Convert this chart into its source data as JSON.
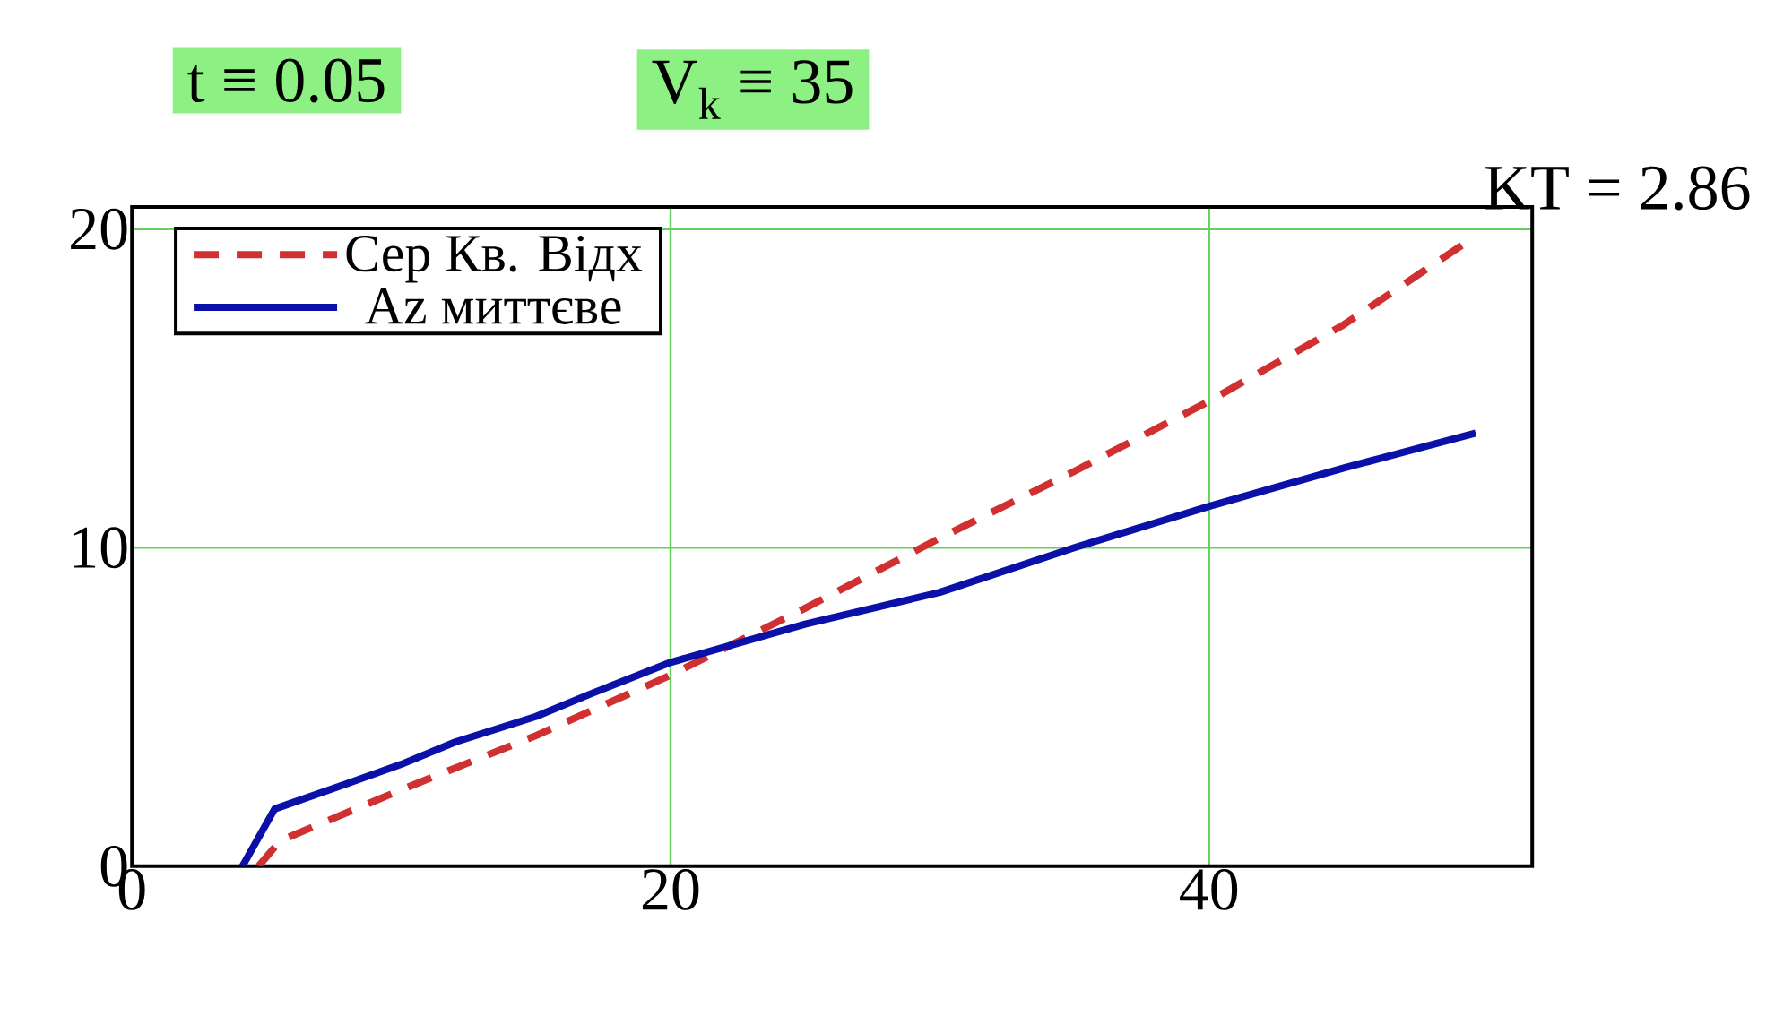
{
  "chart_data": {
    "type": "line",
    "annotations": [
      "t ≡ 0.05",
      "V$_{k}$ ≡ 35",
      "KT = 2.86"
    ],
    "xlim": [
      0,
      52
    ],
    "ylim": [
      0,
      20.7
    ],
    "xticks": [
      0,
      20,
      40
    ],
    "yticks": [
      0,
      10,
      20
    ],
    "grid": true,
    "legend": "top left",
    "series": [
      {
        "name": "Сер Кв. Відх",
        "color": "#d03030",
        "line_style": "dashed",
        "x": [
          4.7,
          5.5,
          10,
          15,
          20,
          25,
          30,
          35,
          40,
          45,
          49.4
        ],
        "values": [
          0,
          0.8,
          2.4,
          4.1,
          6.0,
          8.1,
          10.3,
          12.4,
          14.6,
          17.0,
          19.5
        ]
      },
      {
        "name": "Az миттєве",
        "color": "#0a10a8",
        "line_style": "solid",
        "x": [
          4.1,
          5.3,
          8,
          10,
          12,
          15,
          17,
          20,
          25,
          30,
          35,
          40,
          45,
          49.9
        ],
        "values": [
          0,
          1.8,
          2.6,
          3.2,
          3.9,
          4.7,
          5.4,
          6.4,
          7.6,
          8.6,
          10.0,
          11.3,
          12.5,
          13.6
        ]
      }
    ]
  }
}
